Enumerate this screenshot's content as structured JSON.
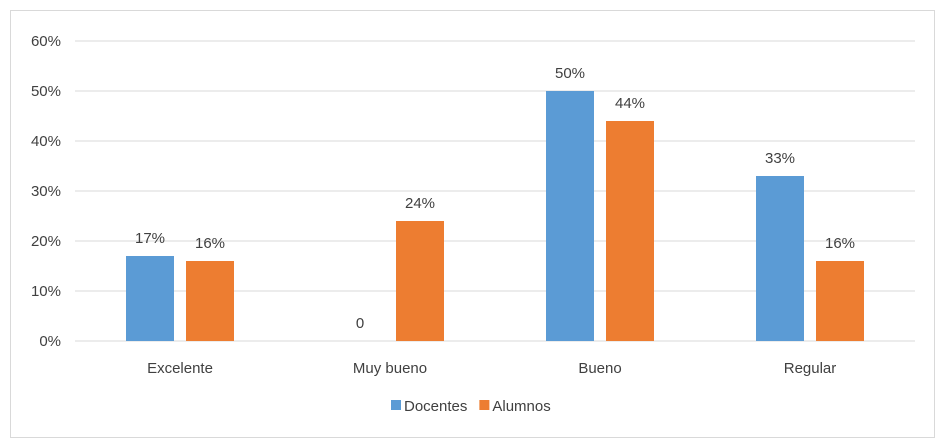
{
  "chart_data": {
    "type": "bar",
    "categories": [
      "Excelente",
      "Muy bueno",
      "Bueno",
      "Regular"
    ],
    "series": [
      {
        "name": "Docentes",
        "color": "#5b9bd5",
        "values": [
          17,
          0,
          50,
          33
        ],
        "labels": [
          "17%",
          "0",
          "50%",
          "33%"
        ]
      },
      {
        "name": "Alumnos",
        "color": "#ed7d31",
        "values": [
          16,
          24,
          44,
          16
        ],
        "labels": [
          "16%",
          "24%",
          "44%",
          "16%"
        ]
      }
    ],
    "y_ticks": [
      "0%",
      "10%",
      "20%",
      "30%",
      "40%",
      "50%",
      "60%"
    ],
    "ylim": [
      0,
      60
    ],
    "title": "",
    "xlabel": "",
    "ylabel": "",
    "grid": true,
    "gridline_color": "#d9d9d9",
    "legend_position": "bottom"
  }
}
